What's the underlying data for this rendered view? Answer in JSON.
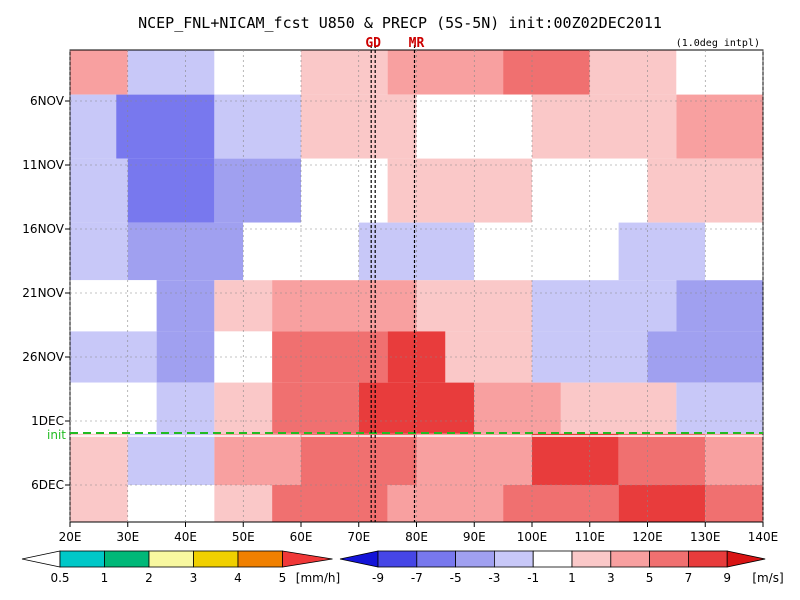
{
  "chart_data": {
    "type": "heatmap",
    "title": "NCEP_FNL+NICAM_fcst U850 & PRECP (5S-5N) init:00Z02DEC2011",
    "note": "(1.0deg intpl)",
    "x_ticks": [
      "20E",
      "30E",
      "40E",
      "50E",
      "60E",
      "70E",
      "80E",
      "90E",
      "100E",
      "110E",
      "120E",
      "130E",
      "140E"
    ],
    "x_range": [
      20,
      140
    ],
    "y_ticks": [
      "6NOV",
      "11NOV",
      "16NOV",
      "21NOV",
      "26NOV",
      "1DEC",
      "6DEC"
    ],
    "markers": [
      {
        "label": "GD",
        "x": 72.5
      },
      {
        "label": "MR",
        "x": 80
      }
    ],
    "init_line": {
      "label": "init",
      "date": "2DEC"
    },
    "colorbars": [
      {
        "name": "precip",
        "unit": "[mm/h]",
        "tick_labels": [
          "0.5",
          "1",
          "2",
          "3",
          "4",
          "5"
        ],
        "colors": [
          "#00c8c8",
          "#00b878",
          "#f8f8a0",
          "#f0d000",
          "#f08000",
          "#f03838"
        ]
      },
      {
        "name": "u850",
        "unit": "[m/s]",
        "tick_labels": [
          "-9",
          "-7",
          "-5",
          "-3",
          "-1",
          "1",
          "3",
          "5",
          "7",
          "9"
        ],
        "colors": [
          "#1414d8",
          "#4646e6",
          "#7878ee",
          "#a0a0f0",
          "#c8c8f8",
          "#ffffff",
          "#fac8c8",
          "#f8a0a0",
          "#f07070",
          "#e83c3c",
          "#d81414"
        ]
      }
    ],
    "u850_bands": [
      {
        "lat_day": 3,
        "segments": [
          [
            20,
            30,
            "#f8a0a0"
          ],
          [
            30,
            45,
            "#c8c8f8"
          ],
          [
            45,
            60,
            "#ffffff"
          ],
          [
            60,
            75,
            "#fac8c8"
          ],
          [
            75,
            95,
            "#f8a0a0"
          ],
          [
            95,
            110,
            "#f07070"
          ],
          [
            110,
            125,
            "#fac8c8"
          ],
          [
            125,
            140,
            "#ffffff"
          ]
        ]
      },
      {
        "lat_day": 8,
        "segments": [
          [
            20,
            28,
            "#c8c8f8"
          ],
          [
            28,
            45,
            "#7878ee"
          ],
          [
            45,
            60,
            "#c8c8f8"
          ],
          [
            60,
            80,
            "#fac8c8"
          ],
          [
            80,
            100,
            "#ffffff"
          ],
          [
            100,
            125,
            "#fac8c8"
          ],
          [
            125,
            140,
            "#f8a0a0"
          ]
        ]
      },
      {
        "lat_day": 13,
        "segments": [
          [
            20,
            30,
            "#c8c8f8"
          ],
          [
            30,
            45,
            "#7878ee"
          ],
          [
            45,
            60,
            "#a0a0f0"
          ],
          [
            60,
            75,
            "#ffffff"
          ],
          [
            75,
            100,
            "#fac8c8"
          ],
          [
            100,
            120,
            "#ffffff"
          ],
          [
            120,
            140,
            "#fac8c8"
          ]
        ]
      },
      {
        "lat_day": 18,
        "segments": [
          [
            20,
            30,
            "#c8c8f8"
          ],
          [
            30,
            50,
            "#a0a0f0"
          ],
          [
            50,
            70,
            "#ffffff"
          ],
          [
            70,
            90,
            "#c8c8f8"
          ],
          [
            90,
            115,
            "#ffffff"
          ],
          [
            115,
            130,
            "#c8c8f8"
          ],
          [
            130,
            140,
            "#ffffff"
          ]
        ]
      },
      {
        "lat_day": 22,
        "segments": [
          [
            20,
            35,
            "#ffffff"
          ],
          [
            35,
            45,
            "#a0a0f0"
          ],
          [
            45,
            55,
            "#fac8c8"
          ],
          [
            55,
            80,
            "#f8a0a0"
          ],
          [
            80,
            100,
            "#fac8c8"
          ],
          [
            100,
            125,
            "#c8c8f8"
          ],
          [
            125,
            140,
            "#a0a0f0"
          ]
        ]
      },
      {
        "lat_day": 26,
        "segments": [
          [
            20,
            35,
            "#c8c8f8"
          ],
          [
            35,
            45,
            "#a0a0f0"
          ],
          [
            45,
            55,
            "#ffffff"
          ],
          [
            55,
            75,
            "#f07070"
          ],
          [
            75,
            85,
            "#e83c3c"
          ],
          [
            85,
            100,
            "#fac8c8"
          ],
          [
            100,
            120,
            "#c8c8f8"
          ],
          [
            120,
            140,
            "#a0a0f0"
          ]
        ]
      },
      {
        "lat_day": 30,
        "segments": [
          [
            20,
            35,
            "#ffffff"
          ],
          [
            35,
            45,
            "#c8c8f8"
          ],
          [
            45,
            55,
            "#fac8c8"
          ],
          [
            55,
            70,
            "#f07070"
          ],
          [
            70,
            90,
            "#e83c3c"
          ],
          [
            90,
            105,
            "#f8a0a0"
          ],
          [
            105,
            125,
            "#fac8c8"
          ],
          [
            125,
            140,
            "#c8c8f8"
          ]
        ]
      },
      {
        "lat_day": 34,
        "segments": [
          [
            20,
            30,
            "#fac8c8"
          ],
          [
            30,
            45,
            "#c8c8f8"
          ],
          [
            45,
            60,
            "#f8a0a0"
          ],
          [
            60,
            80,
            "#f07070"
          ],
          [
            80,
            100,
            "#f8a0a0"
          ],
          [
            100,
            115,
            "#e83c3c"
          ],
          [
            115,
            130,
            "#f07070"
          ],
          [
            130,
            140,
            "#f8a0a0"
          ]
        ]
      },
      {
        "lat_day": 38,
        "segments": [
          [
            20,
            30,
            "#fac8c8"
          ],
          [
            30,
            45,
            "#ffffff"
          ],
          [
            45,
            55,
            "#fac8c8"
          ],
          [
            55,
            75,
            "#f07070"
          ],
          [
            75,
            95,
            "#f8a0a0"
          ],
          [
            95,
            115,
            "#f07070"
          ],
          [
            115,
            130,
            "#e83c3c"
          ],
          [
            130,
            140,
            "#f07070"
          ]
        ]
      }
    ]
  }
}
